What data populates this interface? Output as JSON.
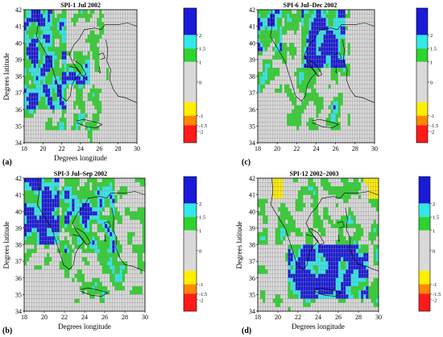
{
  "colors": {
    "class_2": "#1a1ad8",
    "class_1_5": "#33e8e8",
    "class_1": "#2fd22f",
    "class_0": "#d9d9d9",
    "class_m1": "#ffee00",
    "class_m1_5": "#ff8800",
    "class_m2": "#ff1a1a"
  },
  "colorbar_ticks": [
    "2",
    "1.5",
    "1",
    "0",
    "-1",
    "-1.5",
    "-2"
  ],
  "panels": [
    {
      "id": "a",
      "label": "(a)",
      "title": "SPI-1 Jul 2002",
      "xlabel": "Degrees longitude",
      "ylabel": "Degrees latitude",
      "x_ticks": [
        "18",
        "20",
        "22",
        "24",
        "26",
        "28",
        "30"
      ],
      "y_ticks": [
        "34",
        "35",
        "36",
        "37",
        "38",
        "39",
        "40",
        "41",
        "42"
      ],
      "ylabel_visible": true
    },
    {
      "id": "c",
      "label": "(c)",
      "title": "SPI-6 Jul–Dec 2002",
      "xlabel": "Degrees longitude",
      "ylabel": "Degrees latitude",
      "x_ticks": [
        "18",
        "20",
        "22",
        "24",
        "26",
        "28",
        "30"
      ],
      "y_ticks": [
        "34",
        "35",
        "36",
        "37",
        "38",
        "39",
        "40",
        "41",
        "42"
      ],
      "ylabel_visible": false
    },
    {
      "id": "b",
      "label": "(b)",
      "title": "SPI-3 Jul–Sep 2002",
      "xlabel": "Degrees longitude",
      "ylabel": "Degrees latitude",
      "x_ticks": [
        "18",
        "20",
        "22",
        "24",
        "26",
        "28",
        "30"
      ],
      "y_ticks": [
        "34",
        "35",
        "36",
        "37",
        "38",
        "39",
        "40",
        "41",
        "42"
      ],
      "ylabel_visible": true
    },
    {
      "id": "d",
      "label": "(d)",
      "title": "SPI-12 2002–2003",
      "xlabel": "Degrees longitude",
      "ylabel": "Degrees latitude",
      "x_ticks": [
        "18",
        "20",
        "22",
        "24",
        "26",
        "28",
        "30"
      ],
      "y_ticks": [
        "34",
        "35",
        "36",
        "37",
        "38",
        "39",
        "40",
        "41",
        "42"
      ],
      "ylabel_visible": true
    }
  ],
  "map_extent": {
    "lon": [
      18,
      30
    ],
    "lat": [
      34,
      42
    ]
  },
  "grid_resolution_deg": 0.25
}
